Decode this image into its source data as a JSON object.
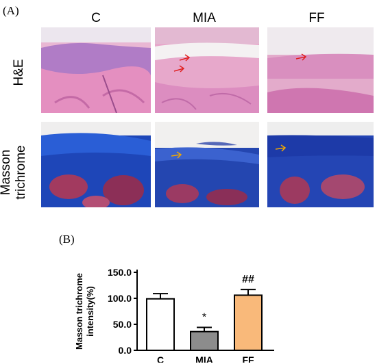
{
  "figure": {
    "panel_a_label": "(A)",
    "panel_b_label": "(B)",
    "columns": [
      "C",
      "MIA",
      "FF"
    ],
    "rows": [
      "H&E",
      "Masson trichrome"
    ]
  },
  "chart_data": {
    "type": "bar",
    "categories": [
      "C",
      "MIA",
      "FF"
    ],
    "values": [
      99,
      36,
      106
    ],
    "errors": [
      10,
      8,
      11
    ],
    "bar_colors": [
      "#ffffff",
      "#8c8c8c",
      "#f9b97a"
    ],
    "annotations": [
      "",
      "*",
      "##"
    ],
    "ylabel_lines": [
      "Masson trichrome",
      "intensity(%)"
    ],
    "ylim": [
      0,
      150
    ],
    "yticks": [
      "0.0",
      "50.0",
      "100.0",
      "150.0"
    ],
    "ytick_values": [
      0,
      50,
      100,
      150
    ]
  }
}
